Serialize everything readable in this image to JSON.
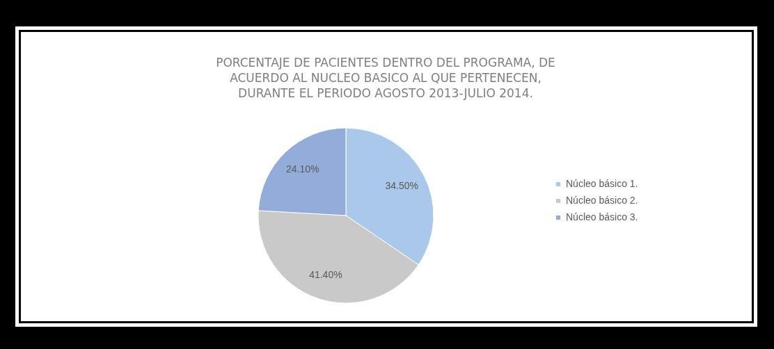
{
  "chart_data": {
    "type": "pie",
    "title": "PORCENTAJE DE PACIENTES DENTRO DEL PROGRAMA, DE ACUERDO AL NUCLEO BASICO AL QUE PERTENECEN, DURANTE EL PERIODO AGOSTO 2013-JULIO 2014.",
    "categories": [
      "Núcleo básico 1.",
      "Núcleo básico 2.",
      "Núcleo básico 3."
    ],
    "values": [
      34.5,
      41.4,
      24.1
    ],
    "value_labels": [
      "34.50%",
      "41.40%",
      "24.10%"
    ],
    "colors": [
      "#a9c8ea",
      "#c9c9c9",
      "#93acd9"
    ],
    "legend": "right"
  }
}
